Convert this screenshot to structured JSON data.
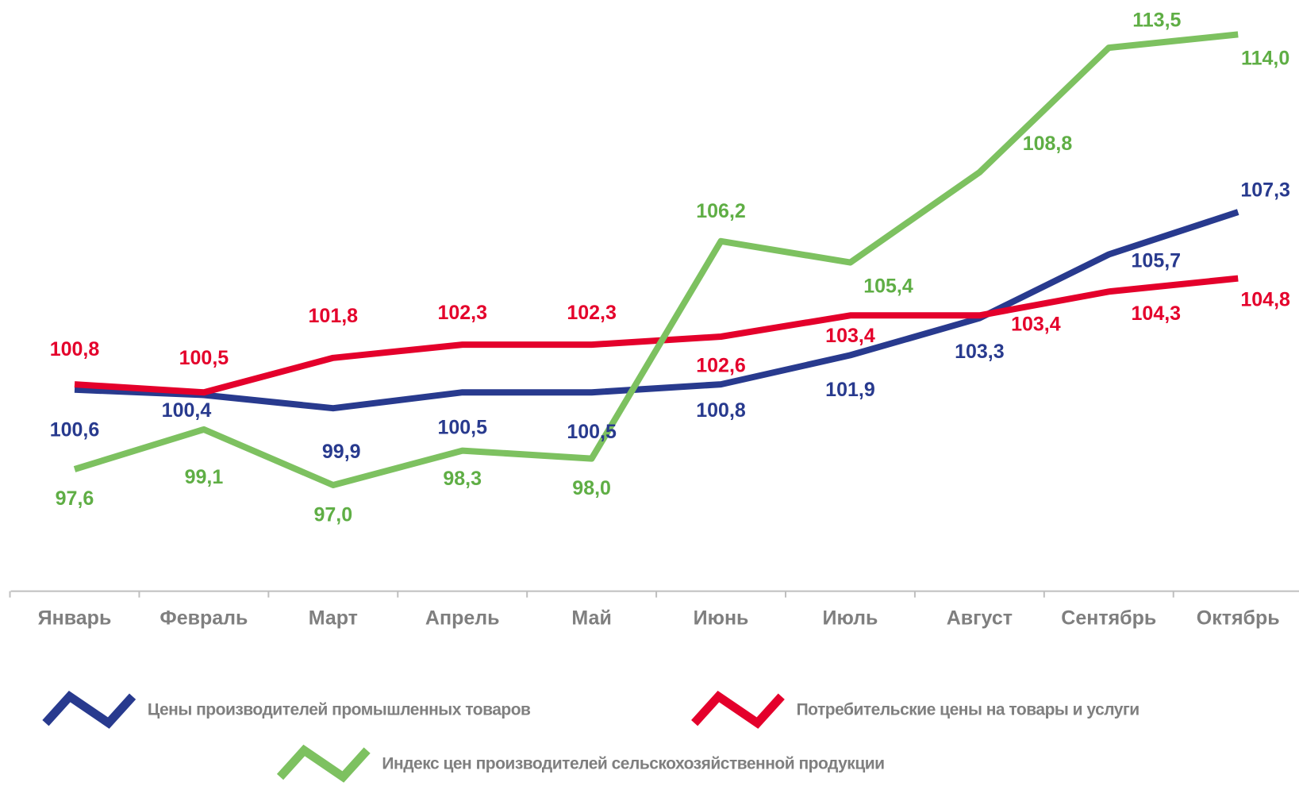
{
  "chart_data": {
    "type": "line",
    "categories": [
      "Январь",
      "Февраль",
      "Март",
      "Апрель",
      "Май",
      "Июнь",
      "Июль",
      "Август",
      "Сентябрь",
      "Октябрь"
    ],
    "ylim": [
      93,
      115.3
    ],
    "series": [
      {
        "name": "Цены производителей промышленных товаров",
        "color": "#283a8e",
        "values": [
          100.6,
          100.4,
          99.9,
          100.5,
          100.5,
          100.8,
          101.9,
          103.3,
          105.7,
          107.3
        ],
        "value_labels": [
          "100,6",
          "100,4",
          "99,9",
          "100,5",
          "100,5",
          "100,8",
          "101,9",
          "103,3",
          "105,7",
          "107,3"
        ]
      },
      {
        "name": "Потребительские цены на товары и услуги",
        "color": "#e4002b",
        "values": [
          100.8,
          100.5,
          101.8,
          102.3,
          102.3,
          102.6,
          103.4,
          103.4,
          104.3,
          104.8
        ],
        "value_labels": [
          "100,8",
          "100,5",
          "101,8",
          "102,3",
          "102,3",
          "102,6",
          "103,4",
          "103,4",
          "104,3",
          "104,8"
        ]
      },
      {
        "name": "Индекс цен производителей сельскохозяйственной продукции",
        "color": "#7dc160",
        "values": [
          97.6,
          99.1,
          97.0,
          98.3,
          98.0,
          106.2,
          105.4,
          108.8,
          113.5,
          114.0
        ],
        "value_labels": [
          "97,6",
          "99,1",
          "97,0",
          "98,3",
          "98,0",
          "106,2",
          "105,4",
          "108,8",
          "113,5",
          "114,0"
        ]
      }
    ]
  }
}
